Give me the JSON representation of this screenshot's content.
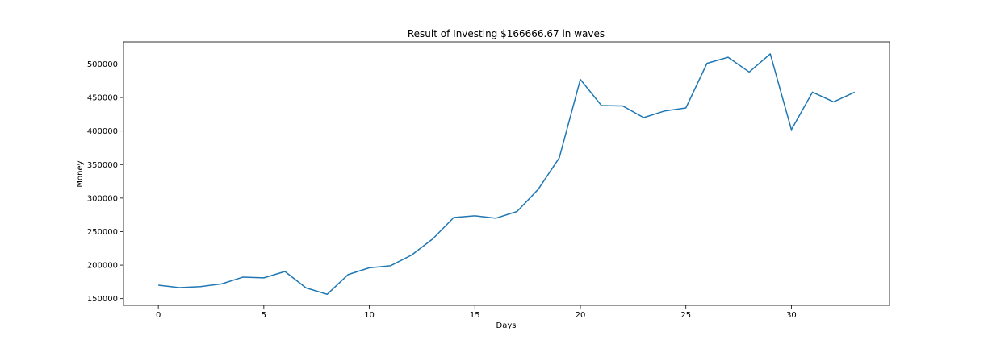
{
  "chart_data": {
    "type": "line",
    "title": "Result of Investing $166666.67 in waves",
    "xlabel": "Days",
    "ylabel": "Money",
    "xlim": [
      -1.65,
      34.65
    ],
    "ylim": [
      140000,
      533000
    ],
    "grid": false,
    "line_color": "#1f77b4",
    "x_ticks": [
      0,
      5,
      10,
      15,
      20,
      25,
      30
    ],
    "x_tick_labels": [
      "0",
      "5",
      "10",
      "15",
      "20",
      "25",
      "30"
    ],
    "y_ticks": [
      150000,
      200000,
      250000,
      300000,
      350000,
      400000,
      450000,
      500000
    ],
    "y_tick_labels": [
      "150000",
      "200000",
      "250000",
      "300000",
      "350000",
      "400000",
      "450000",
      "500000"
    ],
    "series": [
      {
        "x": [
          0,
          1,
          2,
          3,
          4,
          5,
          6,
          7,
          8,
          9,
          10,
          11,
          12,
          13,
          14,
          15,
          16,
          17,
          18,
          19,
          20,
          21,
          22,
          23,
          24,
          25,
          26,
          27,
          28,
          29,
          30,
          31,
          32,
          33
        ],
        "values": [
          170000,
          166500,
          168000,
          172000,
          182000,
          181000,
          190500,
          166000,
          156500,
          186000,
          196000,
          199000,
          215000,
          239000,
          271000,
          273500,
          270000,
          280000,
          313000,
          360000,
          477000,
          438000,
          437500,
          420000,
          430000,
          434500,
          501000,
          510000,
          488000,
          515000,
          402000,
          458000,
          443500,
          458000
        ]
      }
    ]
  }
}
